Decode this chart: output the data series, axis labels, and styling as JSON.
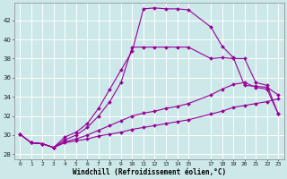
{
  "xlabel": "Windchill (Refroidissement éolien,°C)",
  "bg_color": "#cce8e8",
  "grid_color": "#ffffff",
  "line_color": "#990099",
  "xlim": [
    -0.5,
    23.5
  ],
  "ylim": [
    27.5,
    43.8
  ],
  "xticks": [
    0,
    1,
    2,
    3,
    4,
    5,
    6,
    7,
    8,
    9,
    10,
    11,
    12,
    13,
    14,
    15,
    17,
    18,
    19,
    20,
    21,
    22,
    23
  ],
  "yticks": [
    28,
    30,
    32,
    34,
    36,
    38,
    40,
    42
  ],
  "curve1_x": [
    0,
    1,
    2,
    3,
    4,
    5,
    6,
    7,
    8,
    9,
    10,
    11,
    12,
    13,
    14,
    15,
    17,
    18,
    19,
    20,
    21,
    22,
    23
  ],
  "curve1_y": [
    30.1,
    29.2,
    29.1,
    28.7,
    29.8,
    30.3,
    31.2,
    32.8,
    34.8,
    36.8,
    38.8,
    43.2,
    43.3,
    43.2,
    43.2,
    43.1,
    41.3,
    39.3,
    38.1,
    35.2,
    35.1,
    35.0,
    34.2
  ],
  "curve2_x": [
    1,
    2,
    3,
    4,
    5,
    6,
    7,
    8,
    9,
    10,
    11,
    12,
    13,
    14,
    15,
    17,
    18,
    19,
    20,
    21,
    22,
    23
  ],
  "curve2_y": [
    29.2,
    29.1,
    28.7,
    29.5,
    30.0,
    30.8,
    32.0,
    33.5,
    35.5,
    39.2,
    39.2,
    39.2,
    39.2,
    39.2,
    39.2,
    38.0,
    38.1,
    38.0,
    38.0,
    35.5,
    35.2,
    32.2
  ],
  "curve3_x": [
    0,
    1,
    2,
    3,
    4,
    5,
    6,
    7,
    8,
    9,
    10,
    11,
    12,
    13,
    14,
    15,
    17,
    18,
    19,
    20,
    21,
    22,
    23
  ],
  "curve3_y": [
    30.1,
    29.2,
    29.1,
    28.7,
    29.3,
    29.6,
    30.0,
    30.5,
    31.0,
    31.5,
    32.0,
    32.3,
    32.5,
    32.8,
    33.0,
    33.3,
    34.2,
    34.8,
    35.3,
    35.5,
    35.0,
    34.8,
    32.2
  ],
  "curve4_x": [
    0,
    1,
    2,
    3,
    4,
    5,
    6,
    7,
    8,
    9,
    10,
    11,
    12,
    13,
    14,
    15,
    17,
    18,
    19,
    20,
    21,
    22,
    23
  ],
  "curve4_y": [
    30.1,
    29.2,
    29.1,
    28.7,
    29.2,
    29.4,
    29.6,
    29.9,
    30.1,
    30.3,
    30.6,
    30.8,
    31.0,
    31.2,
    31.4,
    31.6,
    32.2,
    32.5,
    32.9,
    33.1,
    33.3,
    33.5,
    33.8
  ]
}
